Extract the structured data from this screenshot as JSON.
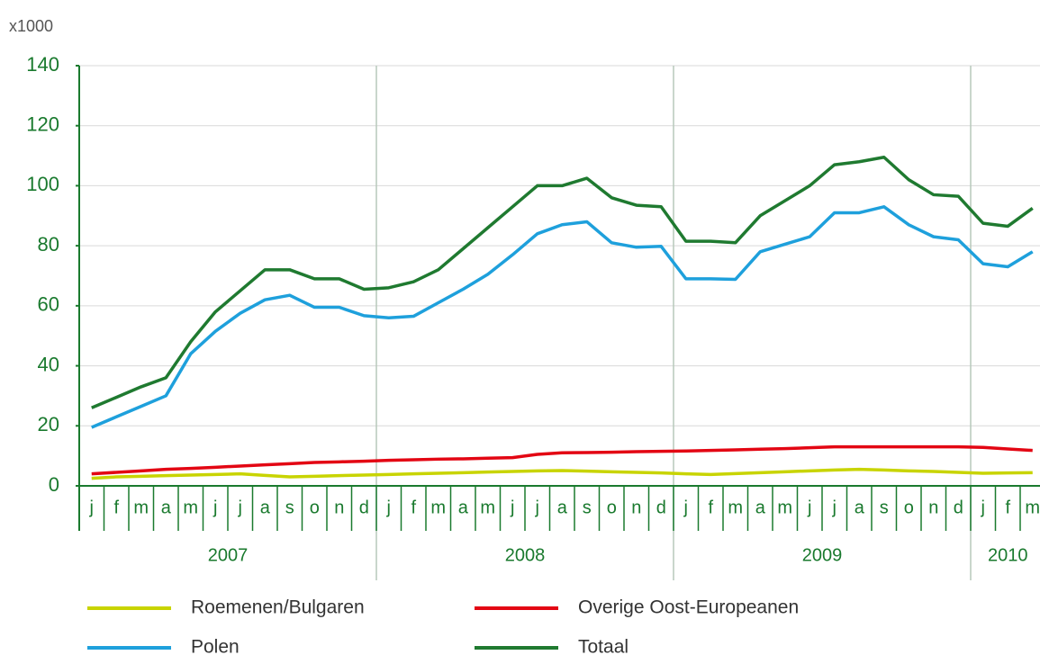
{
  "chart_data": {
    "type": "line",
    "y_label": "x1000",
    "categories": [
      "j",
      "f",
      "m",
      "a",
      "m",
      "j",
      "j",
      "a",
      "s",
      "o",
      "n",
      "d",
      "j",
      "f",
      "m",
      "a",
      "m",
      "j",
      "j",
      "a",
      "s",
      "o",
      "n",
      "d",
      "j",
      "f",
      "m",
      "a",
      "m",
      "j",
      "j",
      "a",
      "s",
      "o",
      "n",
      "d",
      "j",
      "f",
      "m"
    ],
    "years": [
      "2007",
      "2008",
      "2009",
      "2010"
    ],
    "series": [
      {
        "name": "Roemenen/Bulgaren",
        "color": "#c8d400",
        "values": [
          2.5,
          3,
          3.2,
          3.4,
          3.6,
          3.8,
          4,
          3.5,
          3,
          3.2,
          3.4,
          3.6,
          3.8,
          4,
          4.2,
          4.4,
          4.6,
          4.8,
          5,
          5.1,
          4.9,
          4.7,
          4.5,
          4.3,
          4,
          3.8,
          4.1,
          4.4,
          4.7,
          5,
          5.3,
          5.5,
          5.3,
          5,
          4.8,
          4.5,
          4.2,
          4.3,
          4.4
        ]
      },
      {
        "name": "Overige Oost-Europeanen",
        "color": "#e30613",
        "values": [
          4,
          4.5,
          5,
          5.5,
          5.8,
          6.2,
          6.6,
          7,
          7.4,
          7.8,
          8,
          8.2,
          8.5,
          8.7,
          8.9,
          9,
          9.2,
          9.4,
          10.5,
          11,
          11.1,
          11.2,
          11.4,
          11.5,
          11.6,
          11.8,
          12,
          12.2,
          12.4,
          12.7,
          13,
          13,
          13,
          13,
          13,
          13,
          12.8,
          12.3,
          11.8
        ]
      },
      {
        "name": "Polen",
        "color": "#1ea0dc",
        "values": [
          19.5,
          23,
          26.5,
          30,
          44,
          51.5,
          57.5,
          62,
          63.5,
          59.5,
          59.5,
          56.7,
          56,
          56.5,
          61,
          65.5,
          70.5,
          77,
          84,
          87,
          88,
          81,
          79.5,
          79.8,
          69,
          69,
          68.8,
          78,
          80.5,
          83,
          91,
          91,
          93,
          87,
          83,
          82,
          74,
          73,
          78
        ]
      },
      {
        "name": "Totaal",
        "color": "#1f7a30",
        "values": [
          26,
          29.5,
          33,
          36,
          48,
          58,
          65,
          72,
          72,
          69,
          69,
          65.5,
          66,
          68,
          72,
          79,
          86,
          93,
          100,
          100,
          102.5,
          96,
          93.5,
          93,
          81.5,
          81.5,
          81,
          90,
          95,
          100,
          107,
          108,
          109.5,
          102,
          97,
          96.5,
          87.5,
          86.5,
          92.5
        ]
      }
    ],
    "ylim": [
      0,
      140
    ],
    "yticks": [
      0,
      20,
      40,
      60,
      80,
      100,
      120,
      140
    ],
    "grid": true
  }
}
